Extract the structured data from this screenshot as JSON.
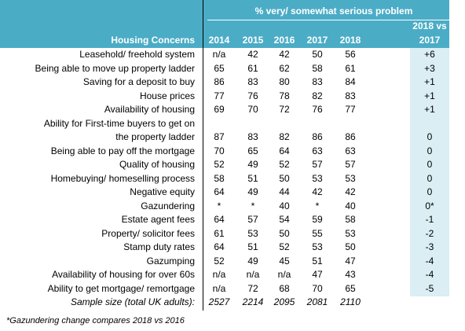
{
  "table": {
    "header": {
      "group": "% very/ somewhat serious problem",
      "change_top": "2018 vs",
      "label_col": "Housing Concerns",
      "years": [
        "2014",
        "2015",
        "2016",
        "2017",
        "2018"
      ],
      "change_bottom": "2017"
    },
    "rows": [
      {
        "label": "Leasehold/ freehold system",
        "values": [
          "n/a",
          42,
          42,
          50,
          56
        ],
        "change": "+6"
      },
      {
        "label": "Being able to move up property ladder",
        "values": [
          65,
          61,
          62,
          58,
          61
        ],
        "change": "+3"
      },
      {
        "label": "Saving for a deposit to buy",
        "values": [
          86,
          83,
          80,
          83,
          84
        ],
        "change": "+1"
      },
      {
        "label": "House prices",
        "values": [
          77,
          76,
          78,
          82,
          83
        ],
        "change": "+1"
      },
      {
        "label": "Availability of housing",
        "values": [
          69,
          70,
          72,
          76,
          77
        ],
        "change": "+1"
      },
      {
        "label": "Ability for First-time buyers to get on\nthe property ladder",
        "values": [
          87,
          83,
          82,
          86,
          86
        ],
        "change": "0"
      },
      {
        "label": "Being able to pay off the mortgage",
        "values": [
          70,
          65,
          64,
          63,
          63
        ],
        "change": "0"
      },
      {
        "label": "Quality of housing",
        "values": [
          52,
          49,
          52,
          57,
          57
        ],
        "change": "0"
      },
      {
        "label": "Homebuying/ homeselling process",
        "values": [
          58,
          51,
          50,
          53,
          53
        ],
        "change": "0"
      },
      {
        "label": "Negative equity",
        "values": [
          64,
          49,
          44,
          42,
          42
        ],
        "change": "0"
      },
      {
        "label": "Gazundering",
        "values": [
          "*",
          "*",
          40,
          "*",
          40
        ],
        "change": "0*"
      },
      {
        "label": "Estate agent fees",
        "values": [
          64,
          57,
          54,
          59,
          58
        ],
        "change": "-1"
      },
      {
        "label": "Property/ solicitor fees",
        "values": [
          61,
          53,
          50,
          55,
          53
        ],
        "change": "-2"
      },
      {
        "label": "Stamp duty rates",
        "values": [
          64,
          51,
          52,
          53,
          50
        ],
        "change": "-3"
      },
      {
        "label": "Gazumping",
        "values": [
          52,
          49,
          45,
          51,
          47
        ],
        "change": "-4"
      },
      {
        "label": "Availability of housing for over 60s",
        "values": [
          "n/a",
          "n/a",
          "n/a",
          47,
          43
        ],
        "change": "-4"
      },
      {
        "label": "Ability to get mortgage/ remortgage",
        "values": [
          "n/a",
          72,
          68,
          70,
          65
        ],
        "change": "-5"
      }
    ],
    "sample": {
      "label": "Sample size (total UK adults):",
      "values": [
        2527,
        2214,
        2095,
        2081,
        2110
      ]
    },
    "footnote": "*Gazundering change compares 2018 vs 2016"
  }
}
